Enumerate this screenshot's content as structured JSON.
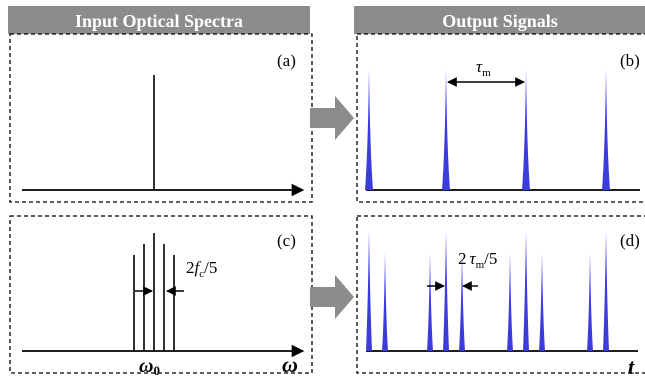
{
  "headers": {
    "left": "Input Optical Spectra",
    "right": "Output Signals"
  },
  "panels": {
    "a": {
      "label": "(a)"
    },
    "b": {
      "label": "(b)",
      "period_symbol": "τ",
      "period_subscript": "m"
    },
    "c": {
      "label": "(c)",
      "spacing_prefix": "2",
      "spacing_symbol": "f",
      "spacing_subscript": "c",
      "spacing_suffix": "/5"
    },
    "d": {
      "label": "(d)",
      "period_prefix": "2",
      "period_symbol": "τ",
      "period_subscript": "m",
      "period_suffix": "/5"
    }
  },
  "axes": {
    "center_frequency_symbol": "ω",
    "center_frequency_subscript": "0",
    "frequency_symbol": "ω",
    "time_symbol": "t"
  },
  "colors": {
    "header_fill": "#8c8c8c",
    "arrow_fill": "#8c8c8c",
    "signal_line": "#3c3cdc",
    "spectral_line": "#000000"
  }
}
